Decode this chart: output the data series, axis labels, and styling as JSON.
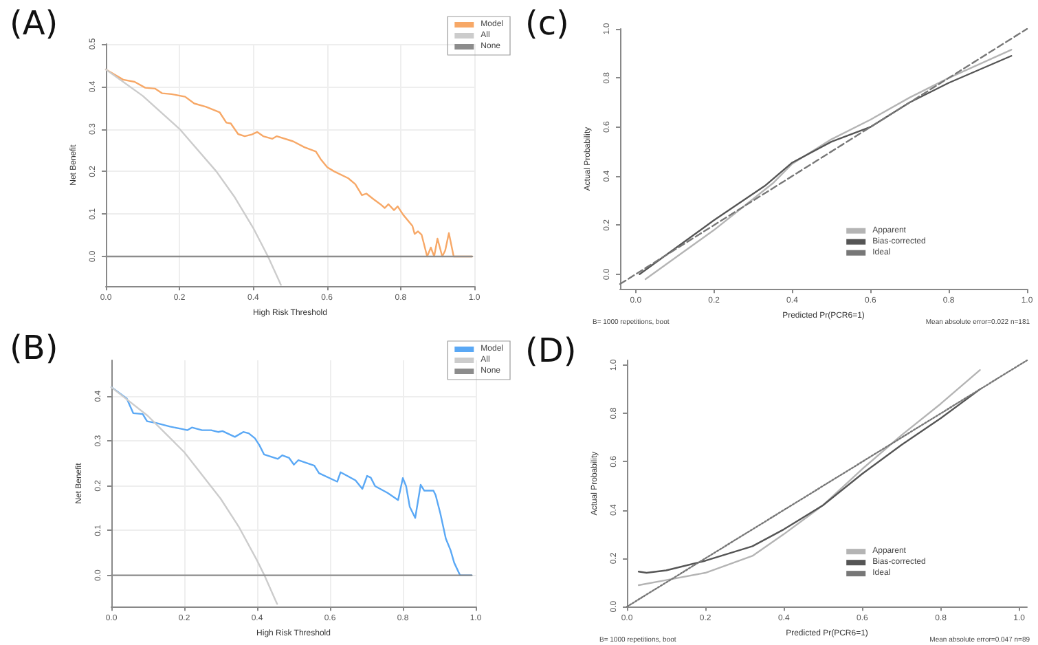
{
  "chart_data": [
    {
      "type": "line",
      "title": "(A)",
      "xlabel": "High Risk Threshold",
      "ylabel": "Net Benefit",
      "xlim": [
        0,
        1
      ],
      "ylim": [
        -0.07,
        0.5
      ],
      "xticks": [
        {
          "value": 0,
          "label": "0.0"
        },
        {
          "value": 0.2,
          "label": "0.2"
        },
        {
          "value": 0.4,
          "label": "0.4"
        },
        {
          "value": 0.6,
          "label": "0.6"
        },
        {
          "value": 0.8,
          "label": "0.8"
        },
        {
          "value": 1,
          "label": "1.0"
        }
      ],
      "yticks": [
        {
          "value": 0,
          "label": "0.0"
        },
        {
          "value": 0.1,
          "label": "0.1"
        },
        {
          "value": 0.2,
          "label": "0.2"
        },
        {
          "value": 0.3,
          "label": "0.3"
        },
        {
          "value": 0.4,
          "label": "0.4"
        },
        {
          "value": 0.5,
          "label": "0.5"
        }
      ],
      "grid": true,
      "legend": "top right",
      "marker": "none",
      "series": [
        {
          "name": "Model",
          "color": "#f7a867",
          "x": [
            0,
            0.047,
            0.078,
            0.107,
            0.134,
            0.153,
            0.178,
            0.215,
            0.24,
            0.272,
            0.309,
            0.327,
            0.339,
            0.359,
            0.377,
            0.396,
            0.411,
            0.427,
            0.452,
            0.464,
            0.508,
            0.539,
            0.57,
            0.583,
            0.601,
            0.62,
            0.658,
            0.677,
            0.695,
            0.707,
            0.726,
            0.745,
            0.757,
            0.767,
            0.782,
            0.792,
            0.807,
            0.832,
            0.838,
            0.847,
            0.857,
            0.872,
            0.882,
            0.891,
            0.9,
            0.913,
            0.921,
            0.931,
            0.944,
            0.994
          ],
          "values": [
            0.44,
            0.416,
            0.411,
            0.397,
            0.395,
            0.384,
            0.382,
            0.376,
            0.36,
            0.352,
            0.339,
            0.315,
            0.313,
            0.288,
            0.283,
            0.287,
            0.293,
            0.283,
            0.277,
            0.283,
            0.271,
            0.257,
            0.247,
            0.229,
            0.21,
            0.2,
            0.184,
            0.17,
            0.144,
            0.148,
            0.135,
            0.123,
            0.114,
            0.123,
            0.109,
            0.118,
            0.098,
            0.072,
            0.053,
            0.059,
            0.051,
            0,
            0.021,
            0,
            0.042,
            0,
            0.014,
            0.055,
            0,
            0
          ]
        },
        {
          "name": "All",
          "color": "#cccccc",
          "x": [
            0,
            0.1,
            0.2,
            0.3,
            0.35,
            0.4,
            0.44,
            0.47,
            0.475
          ],
          "values": [
            0.44,
            0.378,
            0.3,
            0.2,
            0.139,
            0.067,
            0,
            -0.057,
            -0.067
          ]
        },
        {
          "name": "None",
          "color": "#8c8c8c",
          "x": [
            0,
            0.994
          ],
          "values": [
            0,
            0
          ]
        }
      ]
    },
    {
      "type": "line",
      "title": "(B)",
      "xlabel": "High Risk Threshold",
      "ylabel": "Net Benefit",
      "xlim": [
        0,
        1
      ],
      "ylim": [
        -0.07,
        0.48
      ],
      "xticks": [
        {
          "value": 0,
          "label": "0.0"
        },
        {
          "value": 0.2,
          "label": "0.2"
        },
        {
          "value": 0.4,
          "label": "0.4"
        },
        {
          "value": 0.6,
          "label": "0.6"
        },
        {
          "value": 0.8,
          "label": "0.8"
        },
        {
          "value": 1,
          "label": "1.0"
        }
      ],
      "yticks": [
        {
          "value": 0,
          "label": "0.0"
        },
        {
          "value": 0.1,
          "label": "0.1"
        },
        {
          "value": 0.2,
          "label": "0.2"
        },
        {
          "value": 0.3,
          "label": "0.3"
        },
        {
          "value": 0.4,
          "label": "0.4"
        }
      ],
      "grid": true,
      "legend": "top right",
      "marker": "none",
      "series": [
        {
          "name": "Model",
          "color": "#5aa8f5",
          "x": [
            0,
            0.042,
            0.06,
            0.086,
            0.098,
            0.123,
            0.161,
            0.192,
            0.209,
            0.221,
            0.249,
            0.274,
            0.293,
            0.305,
            0.339,
            0.362,
            0.377,
            0.394,
            0.406,
            0.419,
            0.457,
            0.469,
            0.488,
            0.501,
            0.513,
            0.557,
            0.57,
            0.62,
            0.629,
            0.67,
            0.689,
            0.702,
            0.712,
            0.724,
            0.758,
            0.787,
            0.8,
            0.809,
            0.819,
            0.834,
            0.849,
            0.859,
            0.884,
            0.89,
            0.903,
            0.918,
            0.931,
            0.941,
            0.957,
            0.989
          ],
          "values": [
            0.42,
            0.395,
            0.362,
            0.36,
            0.344,
            0.34,
            0.332,
            0.327,
            0.324,
            0.33,
            0.324,
            0.324,
            0.32,
            0.322,
            0.309,
            0.32,
            0.317,
            0.306,
            0.291,
            0.27,
            0.26,
            0.268,
            0.262,
            0.247,
            0.257,
            0.245,
            0.228,
            0.209,
            0.23,
            0.212,
            0.193,
            0.222,
            0.218,
            0.199,
            0.184,
            0.168,
            0.217,
            0.199,
            0.153,
            0.128,
            0.202,
            0.189,
            0.189,
            0.179,
            0.138,
            0.082,
            0.056,
            0.028,
            0,
            0
          ]
        },
        {
          "name": "All",
          "color": "#cccccc",
          "x": [
            0,
            0.1,
            0.2,
            0.3,
            0.35,
            0.4,
            0.42,
            0.45,
            0.455
          ],
          "values": [
            0.42,
            0.356,
            0.275,
            0.171,
            0.108,
            0.033,
            0,
            -0.055,
            -0.064
          ]
        },
        {
          "name": "None",
          "color": "#8c8c8c",
          "x": [
            0,
            0.989
          ],
          "values": [
            0,
            0
          ]
        }
      ]
    },
    {
      "type": "line",
      "title": "(c)",
      "xlabel": "Predicted Pr(PCR6=1)",
      "ylabel": "Actual Probability",
      "xlim": [
        -0.04,
        1
      ],
      "ylim": [
        -0.06,
        1
      ],
      "xticks": [
        {
          "value": 0,
          "label": "0.0"
        },
        {
          "value": 0.2,
          "label": "0.2"
        },
        {
          "value": 0.4,
          "label": "0.4"
        },
        {
          "value": 0.6,
          "label": "0.6"
        },
        {
          "value": 0.8,
          "label": "0.8"
        },
        {
          "value": 1,
          "label": "1.0"
        }
      ],
      "yticks": [
        {
          "value": 0,
          "label": "0.0"
        },
        {
          "value": 0.2,
          "label": "0.2"
        },
        {
          "value": 0.4,
          "label": "0.4"
        },
        {
          "value": 0.6,
          "label": "0.6"
        },
        {
          "value": 0.8,
          "label": "0.8"
        },
        {
          "value": 1,
          "label": "1.0"
        }
      ],
      "legend": "bottom",
      "marker": "none",
      "annotations": [
        "B= 1000 repetitions, boot",
        "Mean absolute error=0.022 n=181"
      ],
      "series": [
        {
          "name": "Apparent",
          "color": "#b4b4b4",
          "line_style": "solid",
          "x": [
            0.025,
            0.2,
            0.35,
            0.4,
            0.5,
            0.6,
            0.7,
            0.8,
            0.96
          ],
          "values": [
            -0.02,
            0.18,
            0.37,
            0.45,
            0.55,
            0.63,
            0.72,
            0.8,
            0.915
          ]
        },
        {
          "name": "Bias-corrected",
          "color": "#555555",
          "line_style": "solid",
          "x": [
            0.01,
            0.2,
            0.33,
            0.4,
            0.5,
            0.6,
            0.7,
            0.8,
            0.96
          ],
          "values": [
            0,
            0.22,
            0.36,
            0.455,
            0.54,
            0.6,
            0.7,
            0.78,
            0.89
          ]
        },
        {
          "name": "Ideal",
          "color": "#777777",
          "line_style": "dashed",
          "x": [
            -0.04,
            1
          ],
          "values": [
            -0.04,
            1
          ]
        }
      ]
    },
    {
      "type": "line",
      "title": "(D)",
      "xlabel": "Predicted Pr(PCR6=1)",
      "ylabel": "Actual Probability",
      "xlim": [
        0,
        1.02
      ],
      "ylim": [
        0,
        1.02
      ],
      "xticks": [
        {
          "value": 0,
          "label": "0.0"
        },
        {
          "value": 0.2,
          "label": "0.2"
        },
        {
          "value": 0.4,
          "label": "0.4"
        },
        {
          "value": 0.6,
          "label": "0.6"
        },
        {
          "value": 0.8,
          "label": "0.8"
        },
        {
          "value": 1,
          "label": "1.0"
        }
      ],
      "yticks": [
        {
          "value": 0,
          "label": "0.0"
        },
        {
          "value": 0.2,
          "label": "0.2"
        },
        {
          "value": 0.4,
          "label": "0.4"
        },
        {
          "value": 0.6,
          "label": "0.6"
        },
        {
          "value": 0.8,
          "label": "0.8"
        },
        {
          "value": 1,
          "label": "1.0"
        }
      ],
      "legend": "bottom",
      "marker": "none",
      "annotations": [
        "B= 1000 repetitions, boot",
        "Mean absolute error=0.047 n=89"
      ],
      "series": [
        {
          "name": "Apparent",
          "color": "#b4b4b4",
          "line_style": "solid",
          "x": [
            0.03,
            0.1,
            0.2,
            0.32,
            0.4,
            0.5,
            0.6,
            0.7,
            0.8,
            0.9
          ],
          "values": [
            0.089,
            0.11,
            0.14,
            0.21,
            0.3,
            0.42,
            0.57,
            0.71,
            0.84,
            0.98
          ]
        },
        {
          "name": "Bias-corrected",
          "color": "#555555",
          "line_style": "solid",
          "x": [
            0.03,
            0.05,
            0.1,
            0.2,
            0.32,
            0.4,
            0.5,
            0.6,
            0.7,
            0.8,
            0.9
          ],
          "values": [
            0.145,
            0.14,
            0.15,
            0.19,
            0.25,
            0.32,
            0.42,
            0.55,
            0.67,
            0.78,
            0.9
          ]
        },
        {
          "name": "Ideal",
          "color": "#777777",
          "line_style": "dotted",
          "x": [
            0,
            1.02
          ],
          "values": [
            0,
            1.02
          ]
        }
      ]
    }
  ]
}
